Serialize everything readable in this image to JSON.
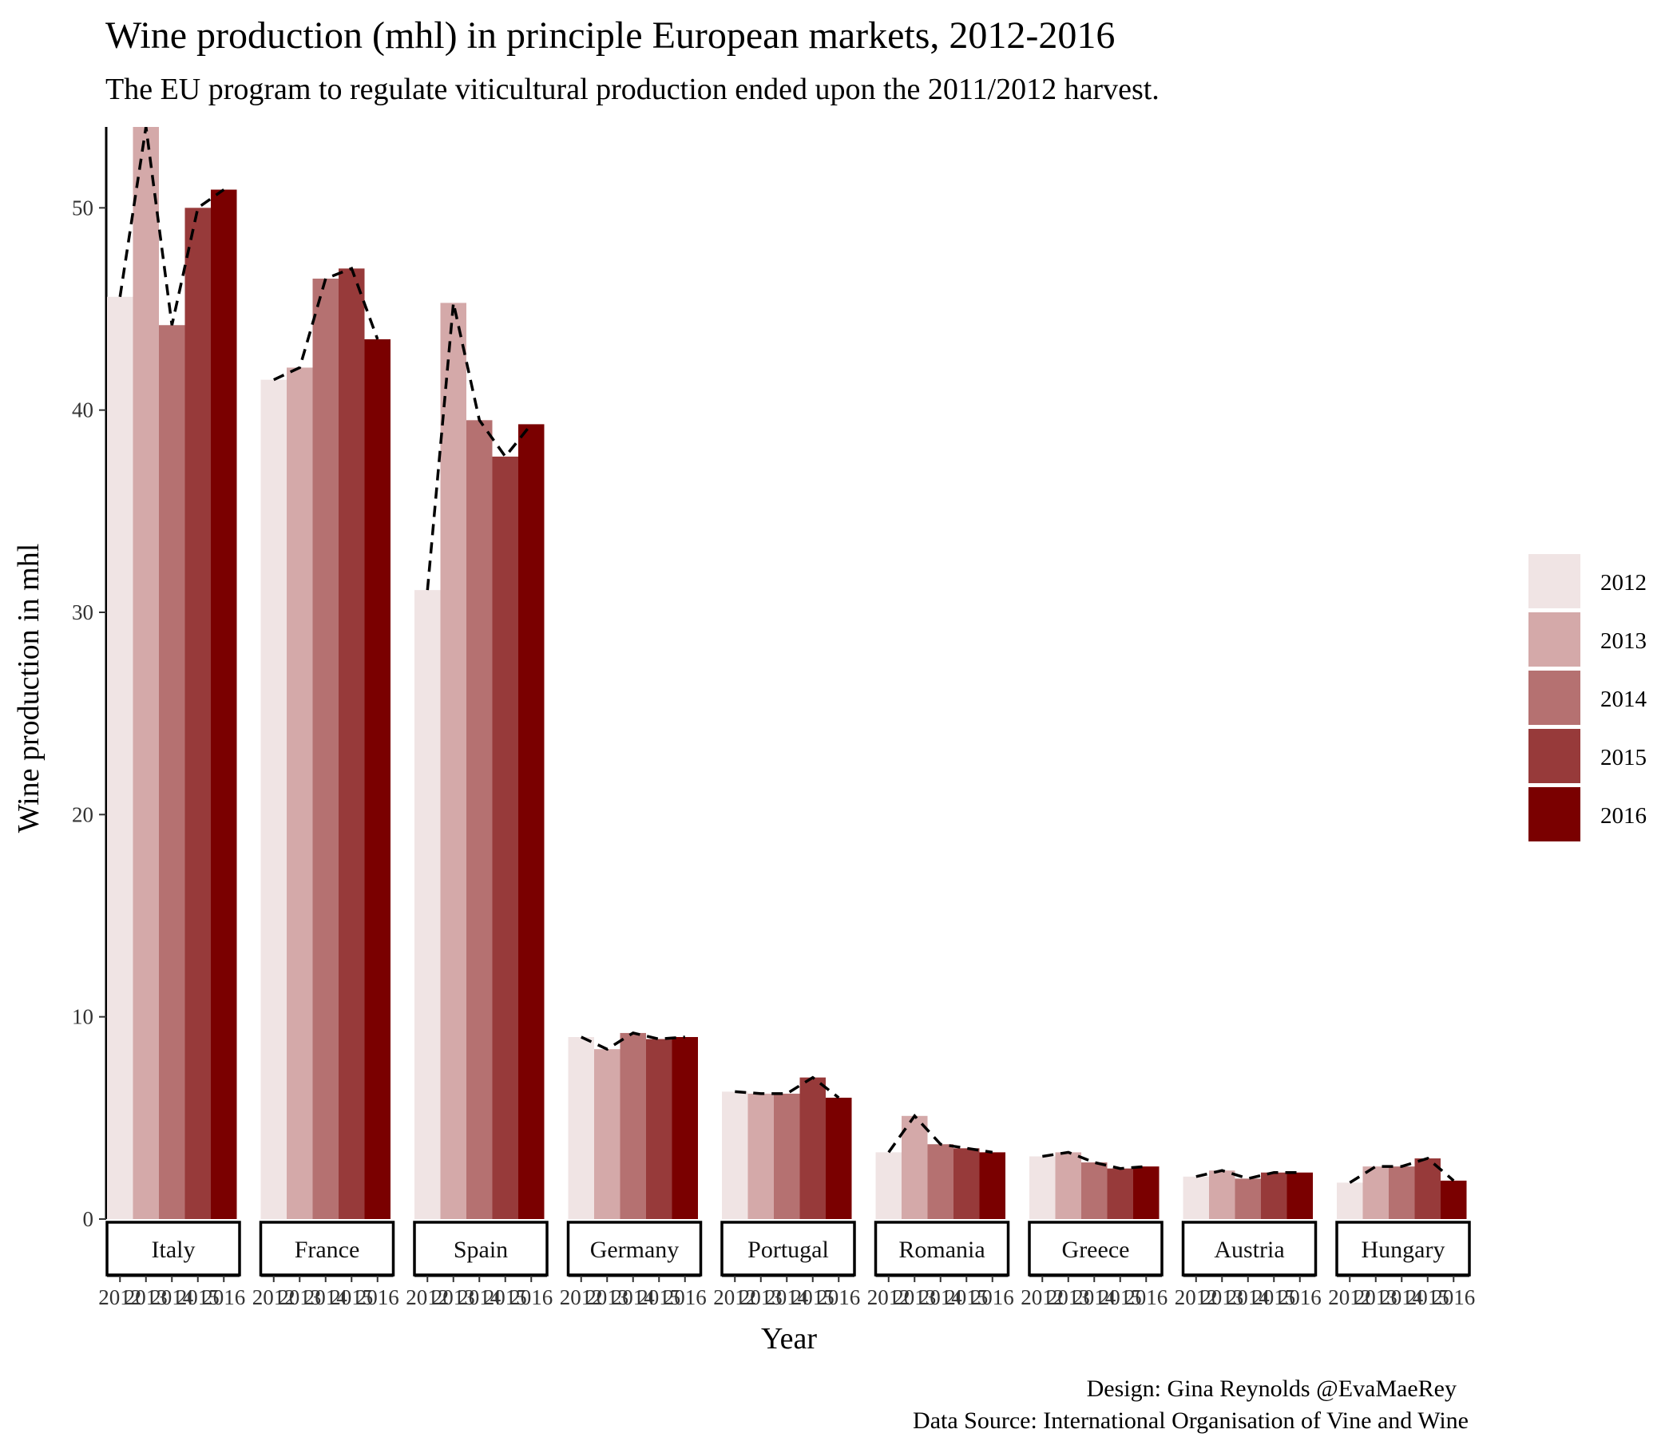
{
  "chart_data": {
    "type": "bar",
    "title": "Wine production (mhl) in principle European markets, 2012-2016",
    "subtitle": "The EU program to regulate viticultural production ended upon the 2011/2012 harvest.",
    "xlabel": "Year",
    "ylabel": "Wine production in mhl",
    "ylim": [
      0,
      54
    ],
    "yticks": [
      0,
      10,
      20,
      30,
      40,
      50
    ],
    "grid": false,
    "legend_position": "right",
    "years": [
      "2012",
      "2013",
      "2014",
      "2015",
      "2016"
    ],
    "colors": [
      "#f0e4e4",
      "#d4a9a9",
      "#b57171",
      "#973a3a",
      "#7a0000"
    ],
    "line_style": "dashed",
    "line_color": "#000000",
    "panels": [
      {
        "country": "Italy",
        "values": [
          45.6,
          54.0,
          44.2,
          50.0,
          50.9
        ]
      },
      {
        "country": "France",
        "values": [
          41.5,
          42.1,
          46.5,
          47.0,
          43.5
        ]
      },
      {
        "country": "Spain",
        "values": [
          31.1,
          45.3,
          39.5,
          37.7,
          39.3
        ]
      },
      {
        "country": "Germany",
        "values": [
          9.0,
          8.4,
          9.2,
          8.9,
          9.0
        ]
      },
      {
        "country": "Portugal",
        "values": [
          6.3,
          6.2,
          6.2,
          7.0,
          6.0
        ]
      },
      {
        "country": "Romania",
        "values": [
          3.3,
          5.1,
          3.7,
          3.5,
          3.3
        ]
      },
      {
        "country": "Greece",
        "values": [
          3.1,
          3.3,
          2.8,
          2.5,
          2.6
        ]
      },
      {
        "country": "Austria",
        "values": [
          2.1,
          2.4,
          2.0,
          2.3,
          2.3
        ]
      },
      {
        "country": "Hungary",
        "values": [
          1.8,
          2.6,
          2.6,
          3.0,
          1.9
        ]
      }
    ]
  },
  "caption": {
    "line1": "Design: Gina Reynolds @EvaMaeRey",
    "line2": "Data Source: International Organisation of Vine and Wine"
  }
}
